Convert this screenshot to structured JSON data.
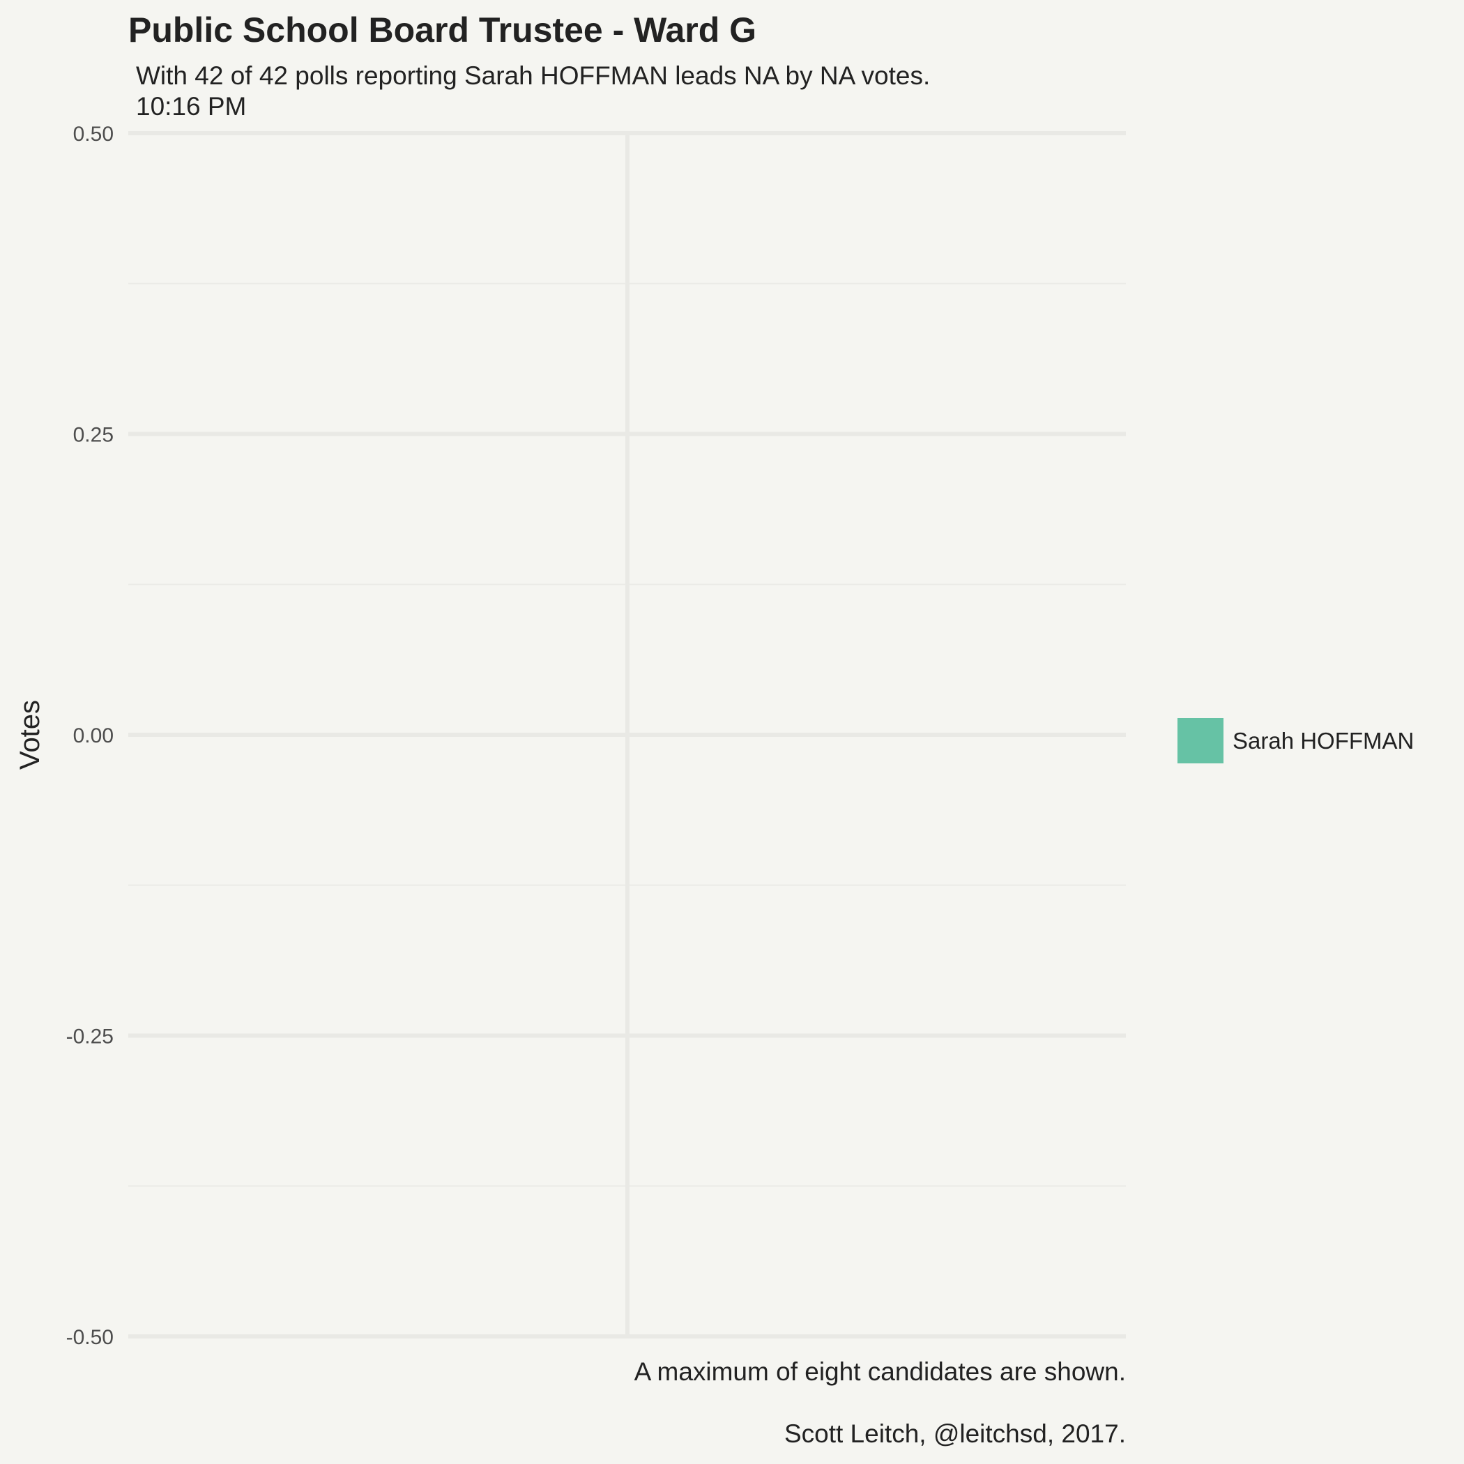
{
  "chart_data": {
    "type": "bar",
    "title": "Public School Board Trustee  - Ward G",
    "subtitle_lines": [
      "With 42 of 42 polls reporting Sarah HOFFMAN leads NA by NA votes.",
      "10:16 PM"
    ],
    "xlabel": "",
    "ylabel": "Votes",
    "ylim": [
      -0.5,
      0.5
    ],
    "y_ticks": [
      -0.5,
      -0.25,
      0.0,
      0.25,
      0.5
    ],
    "y_tick_labels": [
      "-0.50",
      "-0.25",
      "0.00",
      "0.25",
      "0.50"
    ],
    "categories": [],
    "series": [
      {
        "name": "Sarah HOFFMAN",
        "values": [],
        "color": "#66c2a5"
      }
    ],
    "grid": true,
    "legend_position": "right",
    "captions": [
      "A maximum of eight candidates are shown.",
      "Scott Leitch, @leitchsd, 2017."
    ]
  }
}
